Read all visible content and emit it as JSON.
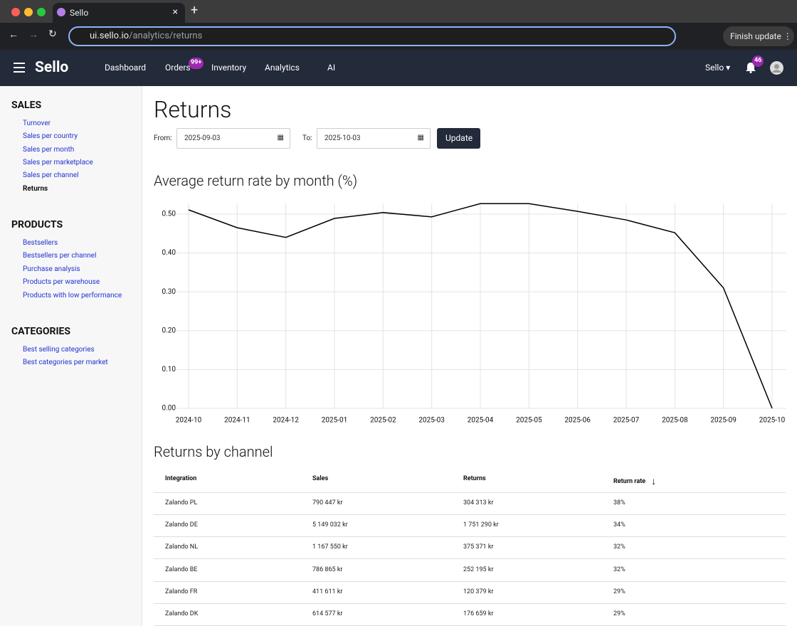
{
  "browser": {
    "tab_title": "Sello",
    "url_host": "ui.sello.io",
    "url_path": "/analytics/returns",
    "finish_update": "Finish update"
  },
  "nav": {
    "brand": "Sello",
    "items": [
      "Dashboard",
      "Orders",
      "Inventory",
      "Analytics",
      "AI"
    ],
    "orders_badge": "99+",
    "account": "Sello",
    "notifications_badge": "46"
  },
  "sidebar": {
    "sections": [
      {
        "title": "SALES",
        "links": [
          "Turnover",
          "Sales per country",
          "Sales per month",
          "Sales per marketplace",
          "Sales per channel",
          "Returns"
        ]
      },
      {
        "title": "PRODUCTS",
        "links": [
          "Bestsellers",
          "Bestsellers per channel",
          "Purchase analysis",
          "Products per warehouse",
          "Products with low performance"
        ]
      },
      {
        "title": "CATEGORIES",
        "links": [
          "Best selling categories",
          "Best categories per market"
        ]
      }
    ]
  },
  "page": {
    "title": "Returns",
    "from_label": "From:",
    "from_date": "2025-09-03",
    "to_label": "To:",
    "to_date": "2025-10-03",
    "update": "Update",
    "table_title": "Returns by channel"
  },
  "chart_data": {
    "type": "line",
    "title": "Average return rate by month (%)",
    "categories": [
      "2024-10",
      "2024-11",
      "2024-12",
      "2025-01",
      "2025-02",
      "2025-03",
      "2025-04",
      "2025-05",
      "2025-06",
      "2025-07",
      "2025-08",
      "2025-09",
      "2025-10"
    ],
    "values": [
      0.511,
      0.465,
      0.44,
      0.489,
      0.504,
      0.493,
      0.527,
      0.527,
      0.507,
      0.485,
      0.452,
      0.31,
      0.0
    ],
    "color": "#000000",
    "ylim": [
      0,
      0.5
    ],
    "yticks": [
      {
        "value": 0,
        "label": "0.00"
      },
      {
        "value": 0.1,
        "label": "0.10"
      },
      {
        "value": 0.2,
        "label": "0.20"
      },
      {
        "value": 0.3,
        "label": "0.30"
      },
      {
        "value": 0.4,
        "label": "0.40"
      },
      {
        "value": 0.5,
        "label": "0.50"
      }
    ],
    "grid": true
  },
  "table": {
    "headers": [
      "Integration",
      "Sales",
      "Returns",
      "Return rate"
    ],
    "rows": [
      [
        "Zalando PL",
        "790 447 kr",
        "304 313 kr",
        "38%"
      ],
      [
        "Zalando DE",
        "5 149 032 kr",
        "1 751 290 kr",
        "34%"
      ],
      [
        "Zalando NL",
        "1 167 550 kr",
        "375 371 kr",
        "32%"
      ],
      [
        "Zalando BE",
        "786 865 kr",
        "252 195 kr",
        "32%"
      ],
      [
        "Zalando FR",
        "411 611 kr",
        "120 379 kr",
        "29%"
      ],
      [
        "Zalando DK",
        "614 577 kr",
        "176 659 kr",
        "29%"
      ]
    ]
  }
}
